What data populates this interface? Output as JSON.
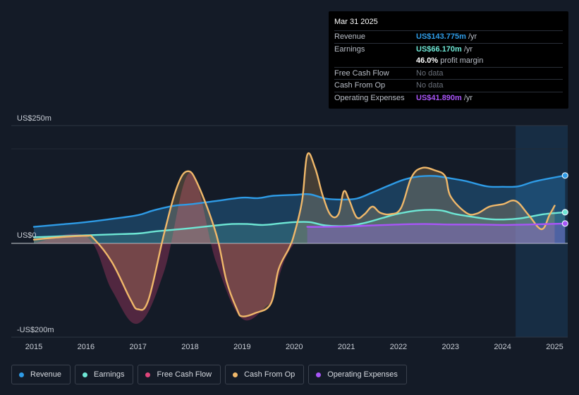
{
  "tooltip": {
    "date": "Mar 31 2025",
    "rows": [
      {
        "label": "Revenue",
        "value": "US$143.775m",
        "unit": "/yr",
        "color": "#2e9be6"
      },
      {
        "label": "Earnings",
        "value": "US$66.170m",
        "unit": "/yr",
        "color": "#6ee7d5"
      },
      {
        "label": "",
        "value": "46.0%",
        "unit": "profit margin",
        "color": "#ffffff"
      },
      {
        "label": "Free Cash Flow",
        "value": "No data"
      },
      {
        "label": "Cash From Op",
        "value": "No data"
      },
      {
        "label": "Operating Expenses",
        "value": "US$41.890m",
        "unit": "/yr",
        "color": "#a855f7"
      }
    ]
  },
  "legend": [
    {
      "label": "Revenue",
      "color": "#2e9be6"
    },
    {
      "label": "Earnings",
      "color": "#6ee7d5"
    },
    {
      "label": "Free Cash Flow",
      "color": "#e0457b"
    },
    {
      "label": "Cash From Op",
      "color": "#f0b86a"
    },
    {
      "label": "Operating Expenses",
      "color": "#a855f7"
    }
  ],
  "chart_data": {
    "type": "area",
    "y_tick_labels": [
      "US$250m",
      "US$0",
      "-US$200m"
    ],
    "ylim": [
      -200,
      250
    ],
    "xlim": [
      2014.6,
      2025.25
    ],
    "x_tick_labels": [
      "2015",
      "2016",
      "2017",
      "2018",
      "2019",
      "2020",
      "2021",
      "2022",
      "2023",
      "2024",
      "2025"
    ],
    "forecast_region_start": 2024.25,
    "series": [
      {
        "name": "Revenue",
        "color": "#2e9be6",
        "points": [
          [
            2015.0,
            35
          ],
          [
            2015.5,
            40
          ],
          [
            2016.0,
            45
          ],
          [
            2016.5,
            52
          ],
          [
            2017.0,
            60
          ],
          [
            2017.3,
            70
          ],
          [
            2017.7,
            80
          ],
          [
            2018.0,
            83
          ],
          [
            2018.5,
            90
          ],
          [
            2019.0,
            97
          ],
          [
            2019.3,
            96
          ],
          [
            2019.6,
            101
          ],
          [
            2020.0,
            103
          ],
          [
            2020.3,
            104
          ],
          [
            2020.6,
            95
          ],
          [
            2020.9,
            93
          ],
          [
            2021.2,
            95
          ],
          [
            2021.5,
            108
          ],
          [
            2021.8,
            122
          ],
          [
            2022.1,
            135
          ],
          [
            2022.4,
            142
          ],
          [
            2022.7,
            143
          ],
          [
            2023.0,
            138
          ],
          [
            2023.3,
            132
          ],
          [
            2023.7,
            121
          ],
          [
            2024.0,
            120
          ],
          [
            2024.3,
            121
          ],
          [
            2024.6,
            131
          ],
          [
            2025.0,
            140
          ],
          [
            2025.2,
            144
          ]
        ]
      },
      {
        "name": "Earnings",
        "color": "#6ee7d5",
        "points": [
          [
            2015.0,
            13
          ],
          [
            2015.5,
            15
          ],
          [
            2016.0,
            17
          ],
          [
            2016.5,
            19
          ],
          [
            2017.0,
            21
          ],
          [
            2017.3,
            25
          ],
          [
            2017.7,
            29
          ],
          [
            2018.0,
            32
          ],
          [
            2018.5,
            38
          ],
          [
            2018.8,
            41
          ],
          [
            2019.1,
            41
          ],
          [
            2019.4,
            39
          ],
          [
            2019.7,
            42
          ],
          [
            2020.0,
            45
          ],
          [
            2020.3,
            45
          ],
          [
            2020.6,
            38
          ],
          [
            2021.0,
            37
          ],
          [
            2021.3,
            42
          ],
          [
            2021.7,
            54
          ],
          [
            2022.0,
            63
          ],
          [
            2022.4,
            70
          ],
          [
            2022.8,
            70
          ],
          [
            2023.1,
            62
          ],
          [
            2023.5,
            55
          ],
          [
            2023.8,
            51
          ],
          [
            2024.1,
            51
          ],
          [
            2024.4,
            54
          ],
          [
            2024.8,
            62
          ],
          [
            2025.2,
            66
          ]
        ]
      },
      {
        "name": "Free Cash Flow",
        "color": "#e0457b",
        "points": [
          [
            2015.0,
            0
          ],
          [
            2016.0,
            15
          ],
          [
            2016.5,
            -100
          ],
          [
            2017.0,
            -170
          ],
          [
            2017.5,
            -60
          ],
          [
            2018.0,
            150
          ],
          [
            2018.5,
            -40
          ],
          [
            2019.0,
            -160
          ],
          [
            2019.5,
            -130
          ],
          [
            2019.55,
            -128
          ],
          [
            2019.8,
            -40
          ],
          [
            2020.0,
            0
          ]
        ]
      },
      {
        "name": "Cash From Op",
        "color": "#f0b86a",
        "points": [
          [
            2015.0,
            8
          ],
          [
            2015.5,
            13
          ],
          [
            2016.0,
            16
          ],
          [
            2016.15,
            10
          ],
          [
            2016.5,
            -40
          ],
          [
            2016.85,
            -118
          ],
          [
            2017.0,
            -140
          ],
          [
            2017.2,
            -120
          ],
          [
            2017.5,
            20
          ],
          [
            2017.75,
            120
          ],
          [
            2017.95,
            153
          ],
          [
            2018.15,
            125
          ],
          [
            2018.5,
            20
          ],
          [
            2018.7,
            -80
          ],
          [
            2018.9,
            -140
          ],
          [
            2019.0,
            -155
          ],
          [
            2019.25,
            -148
          ],
          [
            2019.55,
            -128
          ],
          [
            2019.7,
            -55
          ],
          [
            2019.9,
            -10
          ],
          [
            2020.0,
            20
          ],
          [
            2020.15,
            90
          ],
          [
            2020.25,
            188
          ],
          [
            2020.4,
            160
          ],
          [
            2020.55,
            100
          ],
          [
            2020.7,
            60
          ],
          [
            2020.85,
            62
          ],
          [
            2020.95,
            110
          ],
          [
            2021.05,
            93
          ],
          [
            2021.2,
            55
          ],
          [
            2021.35,
            62
          ],
          [
            2021.5,
            78
          ],
          [
            2021.65,
            65
          ],
          [
            2021.85,
            62
          ],
          [
            2022.05,
            75
          ],
          [
            2022.25,
            140
          ],
          [
            2022.45,
            160
          ],
          [
            2022.7,
            155
          ],
          [
            2022.9,
            142
          ],
          [
            2023.0,
            100
          ],
          [
            2023.3,
            65
          ],
          [
            2023.5,
            63
          ],
          [
            2023.75,
            78
          ],
          [
            2024.0,
            83
          ],
          [
            2024.25,
            90
          ],
          [
            2024.5,
            60
          ],
          [
            2024.75,
            30
          ],
          [
            2024.9,
            60
          ],
          [
            2025.0,
            80
          ]
        ]
      },
      {
        "name": "Operating Expenses",
        "color": "#a855f7",
        "points": [
          [
            2020.25,
            35
          ],
          [
            2020.6,
            35
          ],
          [
            2021.0,
            36
          ],
          [
            2021.5,
            38
          ],
          [
            2022.0,
            40
          ],
          [
            2022.5,
            41
          ],
          [
            2023.0,
            40
          ],
          [
            2023.5,
            40
          ],
          [
            2024.0,
            39
          ],
          [
            2024.5,
            40
          ],
          [
            2025.2,
            42
          ]
        ]
      }
    ]
  }
}
